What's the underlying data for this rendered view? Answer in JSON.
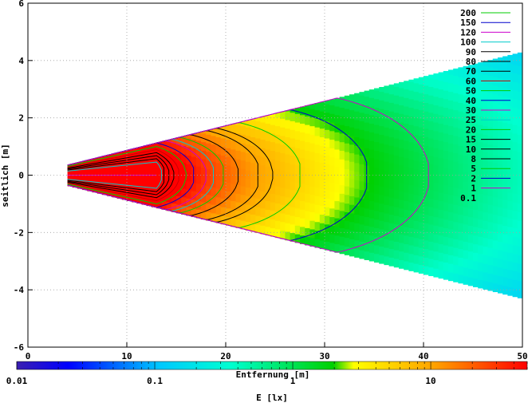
{
  "chart_data": {
    "type": "heatmap",
    "title": "",
    "xlabel": "Entfernung [m]",
    "ylabel": "seitlich [m]",
    "xlim": [
      0,
      50
    ],
    "ylim": [
      -6,
      6
    ],
    "xticks": [
      "0",
      "10",
      "20",
      "30",
      "40",
      "50"
    ],
    "yticks": [
      "6",
      "4",
      "2",
      "0",
      "-2",
      "-4",
      "-6"
    ],
    "grid": true,
    "legend_position": "top-right",
    "legend": [
      {
        "label": "200",
        "color": "#00cc00"
      },
      {
        "label": "150",
        "color": "#0000cc"
      },
      {
        "label": "120",
        "color": "#cc00cc"
      },
      {
        "label": "100",
        "color": "#00cccc"
      },
      {
        "label": "90",
        "color": "#000000"
      },
      {
        "label": "80",
        "color": "#000000"
      },
      {
        "label": "70",
        "color": "#000000"
      },
      {
        "label": "60",
        "color": "#cc0000"
      },
      {
        "label": "50",
        "color": "#00cc00"
      },
      {
        "label": "40",
        "color": "#0000cc"
      },
      {
        "label": "30",
        "color": "#cc00cc"
      },
      {
        "label": "25",
        "color": "#00cccc"
      },
      {
        "label": "20",
        "color": "#00cc00"
      },
      {
        "label": "15",
        "color": "#000000"
      },
      {
        "label": "10",
        "color": "#000000"
      },
      {
        "label": "8",
        "color": "#000000"
      },
      {
        "label": "5",
        "color": "#00cc00"
      },
      {
        "label": "2",
        "color": "#0000cc"
      },
      {
        "label": "1",
        "color": "#cc00cc"
      },
      {
        "label": "0.1",
        "color": ""
      }
    ],
    "colorbar": {
      "label": "E [lx]",
      "scale": "log",
      "range": [
        0.01,
        50
      ],
      "ticks": [
        "0.01",
        "0.1",
        "1",
        "10"
      ]
    },
    "field": {
      "x_range": [
        4,
        50
      ],
      "half_width_start": 0.35,
      "half_width_end": 4.3
    }
  }
}
